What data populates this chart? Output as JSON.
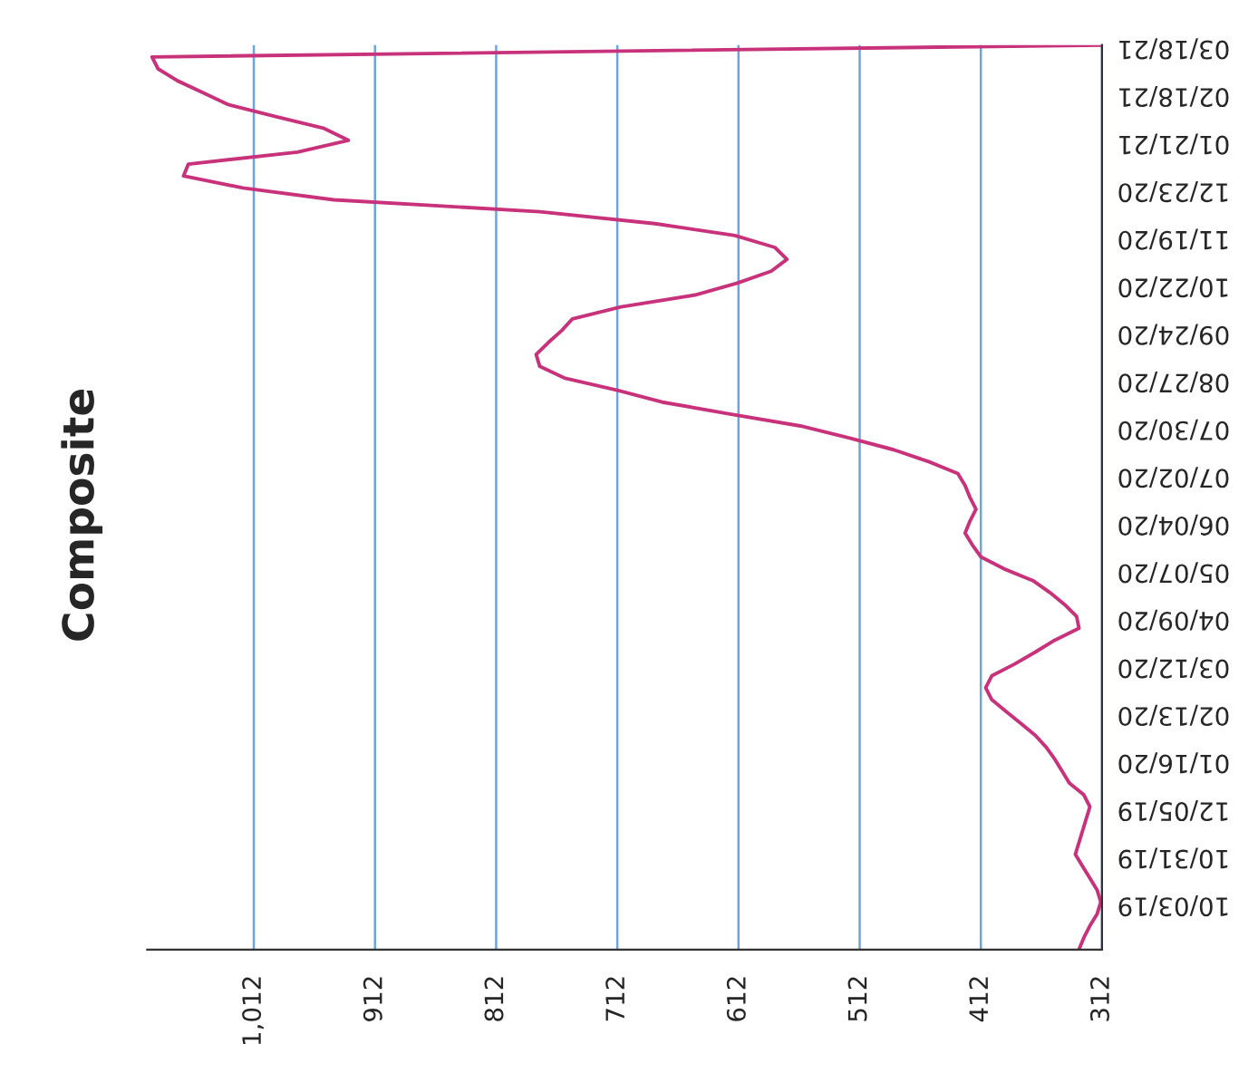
{
  "chart_data": {
    "type": "line",
    "title": "Composite",
    "orientation": "horizontal",
    "categories": [
      "03/18/21",
      null,
      null,
      null,
      "02/18/21",
      null,
      null,
      null,
      "01/21/21",
      null,
      null,
      null,
      "12/23/20",
      null,
      null,
      null,
      "11/19/20",
      null,
      null,
      null,
      "10/22/20",
      null,
      null,
      null,
      "09/24/20",
      null,
      null,
      null,
      "08/27/20",
      null,
      null,
      null,
      "07/30/20",
      null,
      null,
      null,
      "07/02/20",
      null,
      null,
      null,
      "06/04/20",
      null,
      null,
      null,
      "05/07/20",
      null,
      null,
      null,
      "04/09/20",
      null,
      null,
      null,
      "03/12/20",
      null,
      null,
      null,
      "02/13/20",
      null,
      null,
      null,
      "01/16/20",
      null,
      null,
      null,
      "12/05/19",
      null,
      null,
      null,
      "10/31/19",
      null,
      null,
      null,
      "10/03/19",
      null,
      null,
      null,
      null
    ],
    "series": [
      {
        "color": "#c8327a",
        "values": [
          312,
          1096,
          1091,
          1075,
          1054,
          1033,
          994,
          954,
          934,
          976,
          1066,
          1070,
          1021,
          946,
          776,
          681,
          615,
          582,
          572,
          585,
          613,
          648,
          709,
          749,
          758,
          769,
          779,
          776,
          755,
          712,
          675,
          619,
          561,
          521,
          484,
          455,
          431,
          425,
          421,
          416,
          421,
          425,
          419,
          412,
          393,
          369,
          355,
          343,
          333,
          331,
          351,
          367,
          384,
          403,
          408,
          403,
          391,
          379,
          367,
          358,
          351,
          345,
          339,
          327,
          322,
          325,
          328,
          331,
          334,
          328,
          322,
          316,
          313,
          316,
          322,
          327,
          331
        ]
      }
    ],
    "xlim": [
      1100,
      312
    ],
    "xticks": [
      312,
      412,
      512,
      612,
      712,
      812,
      912,
      {
        "value": 1012,
        "label": "1,012"
      }
    ],
    "grid": "x",
    "marker": "none",
    "line_style": "solid"
  }
}
